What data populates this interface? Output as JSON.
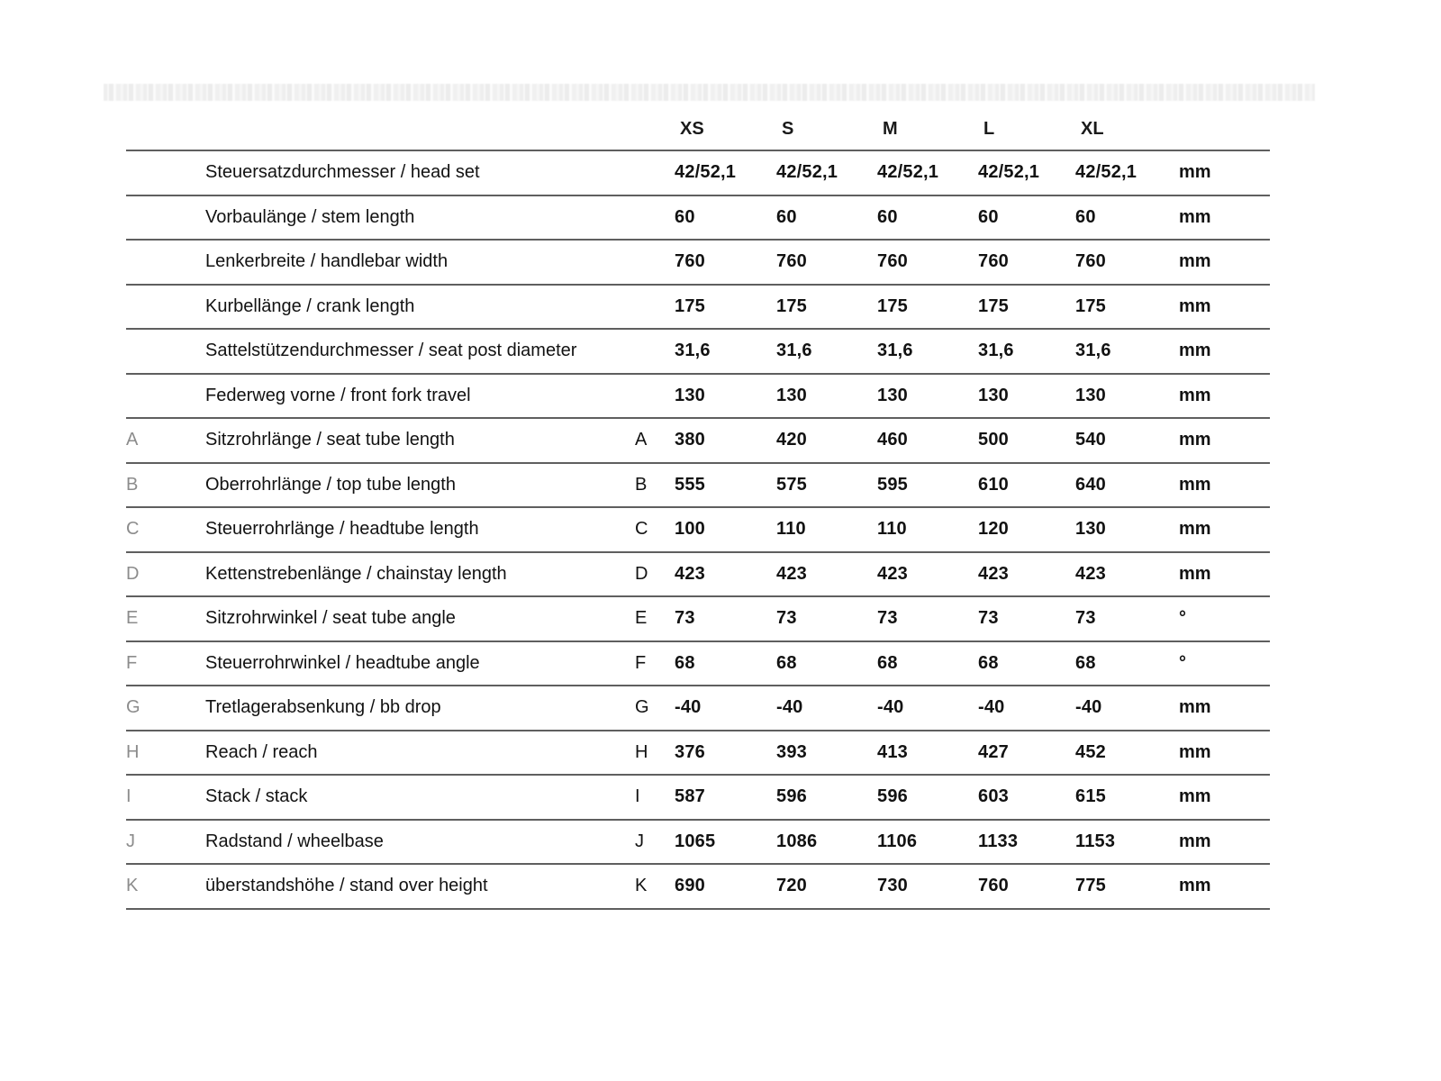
{
  "colors": {
    "background": "#ffffff",
    "rule_line": "#5f5f5f",
    "letter_gray": "#8c8c8c",
    "text": "#121212"
  },
  "chart_data": {
    "type": "table",
    "title": "",
    "size_columns": [
      "XS",
      "S",
      "M",
      "L",
      "XL"
    ],
    "unit_header": "",
    "rows": [
      {
        "letter": "",
        "label": "Steuersatzdurchmesser / head set",
        "values": [
          "42/52,1",
          "42/52,1",
          "42/52,1",
          "42/52,1",
          "42/52,1"
        ],
        "unit": "mm"
      },
      {
        "letter": "",
        "label": "Vorbaulänge / stem length",
        "values": [
          "60",
          "60",
          "60",
          "60",
          "60"
        ],
        "unit": "mm"
      },
      {
        "letter": "",
        "label": "Lenkerbreite / handlebar width",
        "values": [
          "760",
          "760",
          "760",
          "760",
          "760"
        ],
        "unit": "mm"
      },
      {
        "letter": "",
        "label": "Kurbellänge / crank length",
        "values": [
          "175",
          "175",
          "175",
          "175",
          "175"
        ],
        "unit": "mm"
      },
      {
        "letter": "",
        "label": "Sattelstützendurchmesser / seat post diameter",
        "values": [
          "31,6",
          "31,6",
          "31,6",
          "31,6",
          "31,6"
        ],
        "unit": "mm"
      },
      {
        "letter": "",
        "label": "Federweg vorne / front fork travel",
        "values": [
          "130",
          "130",
          "130",
          "130",
          "130"
        ],
        "unit": "mm"
      },
      {
        "letter": "A",
        "label": "Sitzrohrlänge / seat tube length",
        "values": [
          "380",
          "420",
          "460",
          "500",
          "540"
        ],
        "unit": "mm"
      },
      {
        "letter": "B",
        "label": "Oberrohrlänge / top tube length",
        "values": [
          "555",
          "575",
          "595",
          "610",
          "640"
        ],
        "unit": "mm"
      },
      {
        "letter": "C",
        "label": "Steuerrohrlänge / headtube length",
        "values": [
          "100",
          "110",
          "110",
          "120",
          "130"
        ],
        "unit": "mm"
      },
      {
        "letter": "D",
        "label": "Kettenstrebenlänge / chainstay length",
        "values": [
          "423",
          "423",
          "423",
          "423",
          "423"
        ],
        "unit": "mm"
      },
      {
        "letter": "E",
        "label": "Sitzrohrwinkel / seat tube angle",
        "values": [
          "73",
          "73",
          "73",
          "73",
          "73"
        ],
        "unit": "°"
      },
      {
        "letter": "F",
        "label": "Steuerrohrwinkel / headtube angle",
        "values": [
          "68",
          "68",
          "68",
          "68",
          "68"
        ],
        "unit": "°"
      },
      {
        "letter": "G",
        "label": "Tretlagerabsenkung / bb drop",
        "values": [
          "-40",
          "-40",
          "-40",
          "-40",
          "-40"
        ],
        "unit": "mm"
      },
      {
        "letter": "H",
        "label": "Reach / reach",
        "values": [
          "376",
          "393",
          "413",
          "427",
          "452"
        ],
        "unit": "mm"
      },
      {
        "letter": "I",
        "label": "Stack / stack",
        "values": [
          "587",
          "596",
          "596",
          "603",
          "615"
        ],
        "unit": "mm"
      },
      {
        "letter": "J",
        "label": "Radstand / wheelbase",
        "values": [
          "1065",
          "1086",
          "1106",
          "1133",
          "1153"
        ],
        "unit": "mm"
      },
      {
        "letter": "K",
        "label": "überstandshöhe / stand over height",
        "values": [
          "690",
          "720",
          "730",
          "760",
          "775"
        ],
        "unit": "mm"
      }
    ]
  }
}
